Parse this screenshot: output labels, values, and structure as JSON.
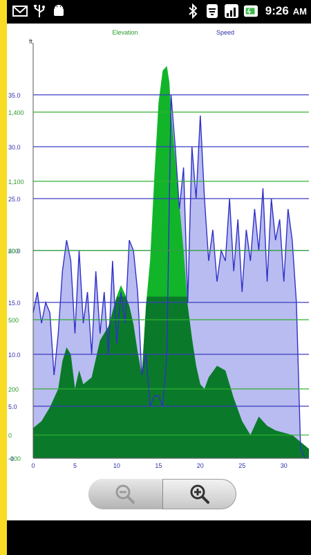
{
  "status_bar": {
    "time": "9:26",
    "ampm": "AM",
    "left_icons": [
      "gmail-icon",
      "usb-icon",
      "android-icon"
    ],
    "right_icons": [
      "bluetooth-icon",
      "wifi-icon",
      "signal-icon",
      "battery-icon"
    ]
  },
  "chart": {
    "series_labels": {
      "elevation": "Elevation",
      "speed": "Speed"
    },
    "y_unit": "ft",
    "colors": {
      "elevation_fill": "#0a7a2a",
      "elevation_highlight": "#12b52a",
      "speed_fill": "#b8bcf0",
      "speed_line": "#3030c8",
      "speed_grid": "#3b3bc0",
      "elevation_grid": "#30b030",
      "label_green": "#2a9a2a",
      "label_blue": "#3030a8"
    }
  },
  "chart_data": {
    "type": "area",
    "xlabel": "",
    "x_ticks": [
      "0",
      "5",
      "10",
      "15",
      "20",
      "25",
      "30"
    ],
    "xlim": [
      0,
      33
    ],
    "elevation_axis": {
      "ticks": [
        "-100",
        "0",
        "200",
        "500",
        "800",
        "1,100",
        "1,400"
      ],
      "ylim": [
        -100,
        1700
      ]
    },
    "speed_axis": {
      "ticks": [
        "-0",
        "5.0",
        "10.0",
        "15.0",
        "20.0",
        "25.0",
        "30.0",
        "35.0"
      ],
      "ylim": [
        0,
        40
      ]
    },
    "series": [
      {
        "name": "Elevation",
        "x": [
          0,
          1,
          2,
          3,
          3.5,
          4,
          4.5,
          5,
          5.5,
          6,
          7,
          8,
          9,
          10,
          10.5,
          11,
          11.5,
          12,
          12.5,
          13,
          13.5,
          14,
          14.5,
          15,
          15.5,
          16,
          16.3,
          16.5,
          17,
          17.5,
          18,
          18.5,
          19,
          19.5,
          20,
          20.5,
          21,
          22,
          23,
          24,
          25,
          26,
          27,
          28,
          29,
          30,
          31,
          32,
          33
        ],
        "values": [
          30,
          60,
          120,
          200,
          320,
          380,
          350,
          200,
          280,
          220,
          250,
          410,
          470,
          600,
          650,
          610,
          560,
          480,
          360,
          260,
          560,
          760,
          1120,
          1440,
          1580,
          1600,
          1530,
          1400,
          1200,
          1000,
          800,
          560,
          420,
          300,
          220,
          200,
          250,
          300,
          280,
          160,
          60,
          0,
          80,
          40,
          20,
          10,
          0,
          -30,
          -60
        ]
      },
      {
        "name": "Speed",
        "x": [
          0,
          0.5,
          1,
          1.5,
          2,
          2.5,
          3,
          3.5,
          4,
          4.5,
          5,
          5.5,
          6,
          6.5,
          7,
          7.5,
          8,
          8.5,
          9,
          9.5,
          10,
          10.5,
          11,
          11.5,
          12,
          12.5,
          13,
          13.5,
          14,
          14.5,
          15,
          15.5,
          16,
          16.5,
          17,
          17.5,
          18,
          18.5,
          19,
          19.5,
          20,
          20.5,
          21,
          21.5,
          22,
          22.5,
          23,
          23.5,
          24,
          24.5,
          25,
          25.5,
          26,
          26.5,
          27,
          27.5,
          28,
          28.5,
          29,
          29.5,
          30,
          30.5,
          31,
          31.5,
          32,
          32.5,
          33
        ],
        "values": [
          14,
          16,
          13,
          15,
          14,
          8,
          12,
          18,
          21,
          19,
          12,
          20,
          13,
          16,
          10,
          18,
          12,
          16,
          10,
          19,
          11,
          16,
          13,
          21,
          20,
          16,
          8,
          10,
          5,
          6,
          6,
          5,
          10,
          35,
          30,
          24,
          28,
          15,
          30,
          25,
          33,
          25,
          19,
          22,
          17,
          20,
          19,
          25,
          18,
          23,
          16,
          22,
          19,
          24,
          20,
          26,
          17,
          25,
          21,
          23,
          17,
          24,
          21,
          15,
          1,
          0,
          0
        ]
      }
    ],
    "grid": true,
    "legend": "top"
  },
  "zoom": {
    "out_icon": "zoom-out-icon",
    "in_icon": "zoom-in-icon"
  }
}
